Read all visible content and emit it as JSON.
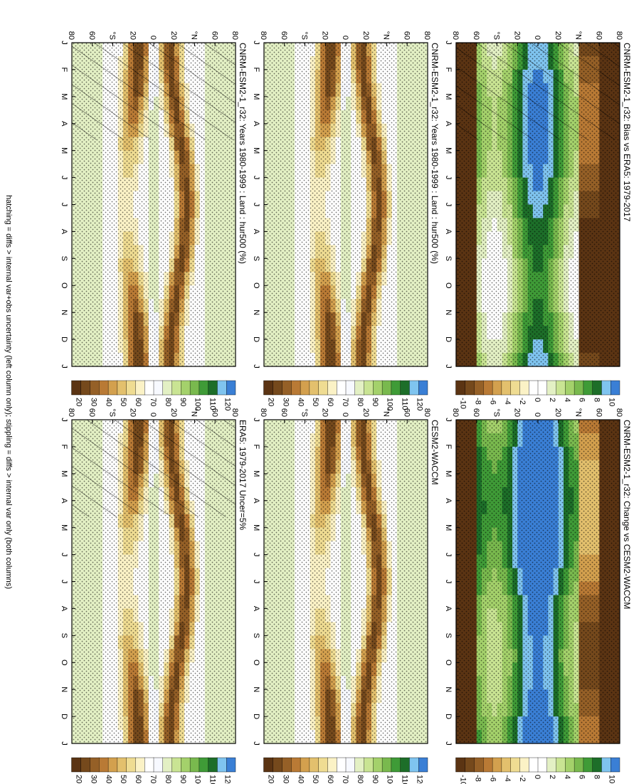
{
  "figure": {
    "footer": "hatching = diffs > internal var+obs uncertainty (left column only); stippling = diffs > internal var only (both columns)"
  },
  "colors": {
    "abs_scale": [
      "#3a7fd5",
      "#7fc4ef",
      "#1d6e29",
      "#3f9b37",
      "#79b94e",
      "#a4d16b",
      "#c9e493",
      "#e3f0c4",
      "#f7f9ff",
      "#ffffff",
      "#fbf2c6",
      "#efdc92",
      "#e3c06d",
      "#d3a04e",
      "#b97a35",
      "#956027",
      "#75491c",
      "#5b3413"
    ],
    "diff_scale": [
      "#3a7fd5",
      "#7fc4ef",
      "#1d6e29",
      "#3f9b37",
      "#79b94e",
      "#a4d16b",
      "#c9e493",
      "#e3f0c4",
      "#ffffff",
      "#ffffff",
      "#fbf2c6",
      "#efdc92",
      "#e3c06d",
      "#d3a04e",
      "#b97a35",
      "#956027",
      "#75491c",
      "#5b3413"
    ]
  },
  "chart_data": [
    {
      "type": "heatmap",
      "title": "CNRM-ESM2-1_r32: Years 1980-1999 : Land : hur500 (%)",
      "x_labels": [
        "J",
        "F",
        "M",
        "A",
        "M",
        "J",
        "J",
        "A",
        "S",
        "O",
        "N",
        "D",
        "J"
      ],
      "y_labels": [
        "80",
        "60",
        "°N",
        "20",
        "0",
        "20",
        "°S",
        "60",
        "80"
      ],
      "colorbar_labels": [
        "120",
        "110",
        "100",
        "90",
        "80",
        "70",
        "60",
        "50",
        "40",
        "30",
        "20"
      ],
      "overlay": [
        "hatching",
        "stippling"
      ],
      "cells": [
        "A",
        "A",
        "A",
        "A",
        "A",
        "A",
        "A",
        "A",
        "A",
        "A",
        "A",
        "A",
        "A",
        "A",
        "A",
        "A",
        "A",
        "A",
        "A",
        "A",
        "A",
        "A",
        "A",
        "A",
        "A",
        "A",
        "A",
        "A",
        "A",
        "A",
        "A",
        "A",
        "A",
        "A",
        "A",
        "A",
        "A",
        "A",
        "A",
        "A",
        "A",
        "A",
        "A",
        "A",
        "A",
        "A",
        "A",
        "A",
        "A",
        "A",
        "A",
        "A",
        "A",
        "A",
        "A",
        "A",
        "A",
        "A",
        "A",
        "A",
        "A",
        "A",
        "A",
        "A",
        "A",
        "A",
        "A",
        "A",
        "A",
        "A",
        "A",
        "A",
        "A",
        "A",
        "A",
        "A",
        "A",
        "A",
        "A",
        "A",
        "A",
        "A",
        "A",
        "A",
        "A",
        "A",
        "A",
        "A",
        "A",
        "A",
        "A",
        "A",
        "A",
        "A",
        "A",
        "A",
        "A",
        "A",
        "A",
        "A",
        "A",
        "A",
        "A",
        "A",
        "A",
        "A",
        "A",
        "A",
        "A",
        "A",
        "A",
        "A",
        "A",
        "A",
        "A",
        "A",
        "A",
        "A",
        "A",
        "A",
        "A",
        "A",
        "A",
        "A",
        "A",
        "A",
        "A",
        "A",
        "A",
        "A"
      ]
    },
    {
      "type": "heatmap",
      "title": "CNRM-ESM2-1_r32: Years 1980-1999 : Land : hur500 (%)",
      "x_labels": [
        "J",
        "F",
        "M",
        "A",
        "M",
        "J",
        "J",
        "A",
        "S",
        "O",
        "N",
        "D",
        "J"
      ],
      "y_labels": [
        "80",
        "60",
        "°N",
        "20",
        "0",
        "20",
        "°S",
        "60",
        "80"
      ],
      "colorbar_labels": [
        "120",
        "110",
        "100",
        "90",
        "80",
        "70",
        "60",
        "50",
        "40",
        "30",
        "20"
      ],
      "overlay": [
        "stippling"
      ]
    },
    {
      "type": "heatmap",
      "title": "ERA5: 1979-2017 Uncer=5%",
      "x_labels": [
        "J",
        "F",
        "M",
        "A",
        "M",
        "J",
        "J",
        "A",
        "S",
        "O",
        "N",
        "D",
        "J"
      ],
      "y_labels": [
        "80",
        "60",
        "°N",
        "20",
        "0",
        "20",
        "°S",
        "60",
        "80"
      ],
      "colorbar_labels": [
        "120",
        "110",
        "100",
        "90",
        "80",
        "70",
        "60",
        "50",
        "40",
        "30",
        "20"
      ],
      "overlay": [
        "hatching",
        "stippling"
      ]
    },
    {
      "type": "heatmap",
      "title": "CESM2-WACCM",
      "x_labels": [
        "J",
        "F",
        "M",
        "A",
        "M",
        "J",
        "J",
        "A",
        "S",
        "O",
        "N",
        "D",
        "J"
      ],
      "y_labels": [
        "80",
        "60",
        "°N",
        "20",
        "0",
        "20",
        "°S",
        "60",
        "80"
      ],
      "colorbar_labels": [
        "120",
        "110",
        "100",
        "90",
        "80",
        "70",
        "60",
        "50",
        "40",
        "30",
        "20"
      ],
      "overlay": [
        "stippling"
      ]
    },
    {
      "type": "heatmap",
      "title": "CNRM-ESM2-1_r32: Bias vs ERA5: 1979-2017",
      "x_labels": [
        "J",
        "F",
        "M",
        "A",
        "M",
        "J",
        "J",
        "A",
        "S",
        "O",
        "N",
        "D",
        "J"
      ],
      "y_labels": [
        "80",
        "60",
        "°N",
        "20",
        "0",
        "20",
        "°S",
        "60",
        "80"
      ],
      "colorbar_labels": [
        "10",
        "8",
        "6",
        "4",
        "2",
        "0",
        "-2",
        "-4",
        "-6",
        "-8",
        "-10"
      ],
      "overlay": [
        "hatching",
        "stippling"
      ]
    },
    {
      "type": "heatmap",
      "title": "CNRM-ESM2-1_r32: Change vs CESM2-WACCM",
      "x_labels": [
        "J",
        "F",
        "M",
        "A",
        "M",
        "J",
        "J",
        "A",
        "S",
        "O",
        "N",
        "D",
        "J"
      ],
      "y_labels": [
        "80",
        "60",
        "°N",
        "20",
        "0",
        "20",
        "°S",
        "60",
        "80"
      ],
      "colorbar_labels": [
        "10",
        "8",
        "6",
        "4",
        "2",
        "0",
        "-2",
        "-4",
        "-6",
        "-8",
        "-10"
      ],
      "overlay": [
        "stippling"
      ]
    }
  ]
}
